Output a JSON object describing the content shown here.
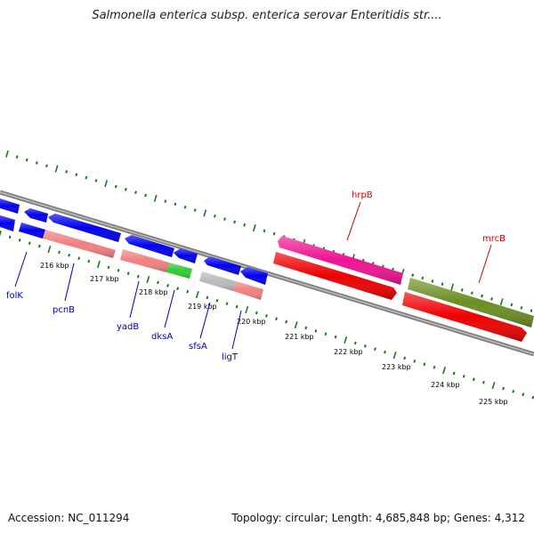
{
  "title": "Salmonella enterica subsp. enterica serovar Enteritidis str....",
  "footer": {
    "accession": "Accession: NC_011294",
    "summary": "Topology: circular; Length: 4,685,848 bp; Genes: 4,312"
  },
  "colors": {
    "backbone": "#7f7f7f",
    "ruler_ticks": "#1a7a1a",
    "gene_label_blue": "#0000aa",
    "gene_label_red": "#cc0000",
    "blue_gene": "#0000ee",
    "pink_gene": "#f08080",
    "green_gene": "#33cc33",
    "grey_gene": "#bbbbbb",
    "magenta_gene": "#ee1493",
    "red_gene": "#ee0000",
    "olive_gene": "#6b8e23"
  },
  "kbp_ticks": [
    "216 kbp",
    "217 kbp",
    "218 kbp",
    "219 kbp",
    "220 kbp",
    "221 kbp",
    "222 kbp",
    "223 kbp",
    "224 kbp",
    "225 kbp"
  ],
  "gene_labels": [
    {
      "text": "folK",
      "color": "blue"
    },
    {
      "text": "pcnB",
      "color": "blue"
    },
    {
      "text": "yadB",
      "color": "blue"
    },
    {
      "text": "dksA",
      "color": "blue"
    },
    {
      "text": "sfsA",
      "color": "blue"
    },
    {
      "text": "ligT",
      "color": "blue"
    },
    {
      "text": "hrpB",
      "color": "red"
    },
    {
      "text": "mrcB",
      "color": "red"
    }
  ]
}
